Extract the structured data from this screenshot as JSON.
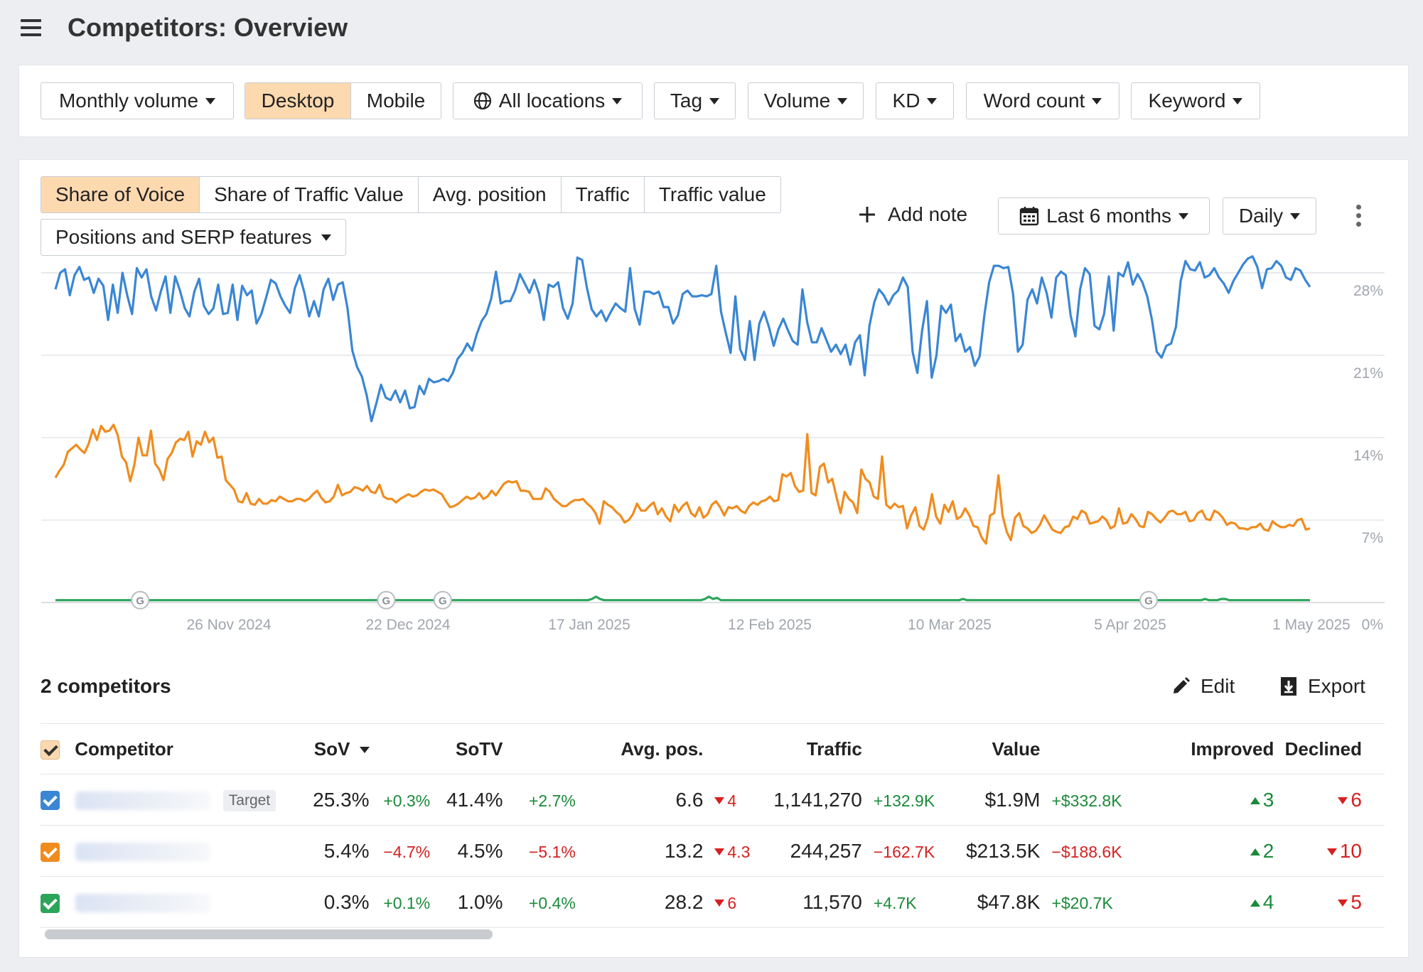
{
  "header": {
    "title": "Competitors: Overview"
  },
  "filters": {
    "monthly_volume": "Monthly volume",
    "desktop": "Desktop",
    "mobile": "Mobile",
    "locations": "All locations",
    "tag": "Tag",
    "volume": "Volume",
    "kd": "KD",
    "word_count": "Word count",
    "keyword": "Keyword"
  },
  "tabs": [
    "Share of Voice",
    "Share of Traffic Value",
    "Avg. position",
    "Traffic",
    "Traffic value"
  ],
  "positions_dropdown": "Positions and SERP features",
  "toolbar": {
    "add_note": "Add note",
    "date_range": "Last 6 months",
    "granularity": "Daily"
  },
  "chart_data": {
    "type": "line",
    "x_ticks": [
      "26 Nov 2024",
      "22 Dec 2024",
      "17 Jan 2025",
      "12 Feb 2025",
      "10 Mar 2025",
      "5 Apr 2025",
      "1 May 2025"
    ],
    "y_ticks": [
      "28%",
      "21%",
      "14%",
      "7%",
      "0%"
    ],
    "ylim": [
      0,
      28
    ],
    "colors": [
      "#3a86d4",
      "#f08c1e",
      "#2ca55a"
    ],
    "annotation_markers": "G",
    "annotation_positions": [
      21,
      82,
      96,
      271
    ],
    "series": [
      {
        "values": [
          26.6,
          28.0,
          28.3,
          26.1,
          27.8,
          28.5,
          27.4,
          27.6,
          26.3,
          27.5,
          26.9,
          24.0,
          27.0,
          24.6,
          28.0,
          26.1,
          24.5,
          28.4,
          27.6,
          28.3,
          26.0,
          24.8,
          26.4,
          27.7,
          24.6,
          27.7,
          26.5,
          25.0,
          24.3,
          26.4,
          27.5,
          25.2,
          24.5,
          25.0,
          27.0,
          24.5,
          24.6,
          27.0,
          24.0,
          26.9,
          26.1,
          26.5,
          23.7,
          24.5,
          25.9,
          27.4,
          27.1,
          26.0,
          25.2,
          24.6,
          26.7,
          27.8,
          26.3,
          24.3,
          25.6,
          24.3,
          26.6,
          27.5,
          25.7,
          27.0,
          27.2,
          25.0,
          21.4,
          20.0,
          19.2,
          17.6,
          15.4,
          16.9,
          18.5,
          17.4,
          17.2,
          18.0,
          17.0,
          18.0,
          16.5,
          16.6,
          18.4,
          17.7,
          19.0,
          18.7,
          18.8,
          19.0,
          18.8,
          19.5,
          20.7,
          21.2,
          22.0,
          21.4,
          22.8,
          23.9,
          24.5,
          25.8,
          28.1,
          25.4,
          25.6,
          25.6,
          26.5,
          27.9,
          27.1,
          26.3,
          27.4,
          26.2,
          24.0,
          27.0,
          26.8,
          27.2,
          25.0,
          24.1,
          25.4,
          29.3,
          29.1,
          26.7,
          24.9,
          24.3,
          24.8,
          23.9,
          24.7,
          25.4,
          25.0,
          24.7,
          28.4,
          24.9,
          23.6,
          26.4,
          26.4,
          26.2,
          26.4,
          25.1,
          25.1,
          23.7,
          24.4,
          26.2,
          26.5,
          26.0,
          26.0,
          26.1,
          26.0,
          26.2,
          28.6,
          24.7,
          22.9,
          21.2,
          26.0,
          21.5,
          20.6,
          23.9,
          20.6,
          23.7,
          24.7,
          23.4,
          21.8,
          23.2,
          24.1,
          23.1,
          22.2,
          21.9,
          26.6,
          23.8,
          22.1,
          22.1,
          23.3,
          22.3,
          21.3,
          21.9,
          21.1,
          21.9,
          20.2,
          22.1,
          22.7,
          19.3,
          23.5,
          25.5,
          26.6,
          26.1,
          25.3,
          26.1,
          26.5,
          27.6,
          26.8,
          21.3,
          19.5,
          23.1,
          25.6,
          19.1,
          21.0,
          25.2,
          24.6,
          25.3,
          22.2,
          22.8,
          21.3,
          21.7,
          20.1,
          20.9,
          24.4,
          27.2,
          28.6,
          28.6,
          28.4,
          28.5,
          26.2,
          21.3,
          21.9,
          25.7,
          26.6,
          25.4,
          27.6,
          26.3,
          24.2,
          27.6,
          28.1,
          27.8,
          24.4,
          22.6,
          26.6,
          28.4,
          27.9,
          23.5,
          23.2,
          24.5,
          27.7,
          23.1,
          28.0,
          27.7,
          28.9,
          27.0,
          27.9,
          27.2,
          26.0,
          24.0,
          21.3,
          20.8,
          21.8,
          22.0,
          23.4,
          27.3,
          29.0,
          28.3,
          28.2,
          28.9,
          27.6,
          27.8,
          28.4,
          27.6,
          27.1,
          26.3,
          27.3,
          28.0,
          28.7,
          29.2,
          29.4,
          28.5,
          26.7,
          28.3,
          28.4,
          29.0,
          28.6,
          27.6,
          27.4,
          28.4,
          28.2,
          27.4,
          26.8
        ],
        "_note": "read from plot"
      },
      {
        "values": [
          10.6,
          11.2,
          11.7,
          12.8,
          13.1,
          13.4,
          13.0,
          12.7,
          13.5,
          14.7,
          13.8,
          15.0,
          14.5,
          14.6,
          15.1,
          14.2,
          12.4,
          11.9,
          10.3,
          11.7,
          14.0,
          12.5,
          12.5,
          14.6,
          11.8,
          11.3,
          10.4,
          12.2,
          12.7,
          13.6,
          13.9,
          13.8,
          14.5,
          12.4,
          13.7,
          13.4,
          14.5,
          13.6,
          14.0,
          12.3,
          12.4,
          10.4,
          10.0,
          9.6,
          8.6,
          8.5,
          9.3,
          8.4,
          8.3,
          8.8,
          8.4,
          8.4,
          8.7,
          8.6,
          9.0,
          8.8,
          8.6,
          8.6,
          8.8,
          8.8,
          8.6,
          8.8,
          9.2,
          9.5,
          8.9,
          8.5,
          8.6,
          9.0,
          10.0,
          9.1,
          9.3,
          9.4,
          9.8,
          9.7,
          9.5,
          9.9,
          9.4,
          9.3,
          10.0,
          9.0,
          8.8,
          8.8,
          8.5,
          8.8,
          9.0,
          9.2,
          9.0,
          9.1,
          9.4,
          9.6,
          9.5,
          9.6,
          9.4,
          9.2,
          8.6,
          8.1,
          8.2,
          8.4,
          8.7,
          9.0,
          8.8,
          8.9,
          9.3,
          8.8,
          9.0,
          9.5,
          9.1,
          9.6,
          10.1,
          10.3,
          10.2,
          10.3,
          9.5,
          9.5,
          9.4,
          8.8,
          8.8,
          8.8,
          9.7,
          9.4,
          8.8,
          8.5,
          8.2,
          8.2,
          8.5,
          8.7,
          8.7,
          8.8,
          8.4,
          8.1,
          7.6,
          6.7,
          8.6,
          8.3,
          8.1,
          7.7,
          7.4,
          6.8,
          7.0,
          7.5,
          8.4,
          7.8,
          7.8,
          8.2,
          8.5,
          7.5,
          8.0,
          7.3,
          6.9,
          8.3,
          7.7,
          8.2,
          8.5,
          7.6,
          7.3,
          8.1,
          7.2,
          7.5,
          8.3,
          8.6,
          8.1,
          7.4,
          8.1,
          8.0,
          8.2,
          7.8,
          7.6,
          8.2,
          8.5,
          8.3,
          8.6,
          8.7,
          9.0,
          8.6,
          8.7,
          10.9,
          10.7,
          11.0,
          9.9,
          9.4,
          9.5,
          14.3,
          9.3,
          9.1,
          11.5,
          11.8,
          10.2,
          10.5,
          9.0,
          7.6,
          9.4,
          8.8,
          8.5,
          7.6,
          11.3,
          10.5,
          10.2,
          9.0,
          8.8,
          12.4,
          8.3,
          8.0,
          8.4,
          8.1,
          8.2,
          6.3,
          7.4,
          8.1,
          6.5,
          6.2,
          7.2,
          9.2,
          7.3,
          6.7,
          8.3,
          7.7,
          8.6,
          7.1,
          7.3,
          8.0,
          7.4,
          6.5,
          6.4,
          5.5,
          5.0,
          7.4,
          7.6,
          10.8,
          7.4,
          6.0,
          5.3,
          7.2,
          7.6,
          6.5,
          6.3,
          5.9,
          6.1,
          6.6,
          7.4,
          6.8,
          6.2,
          6.0,
          5.9,
          6.4,
          6.5,
          7.3,
          7.1,
          7.8,
          7.6,
          6.7,
          6.8,
          6.9,
          7.3,
          7.0,
          6.3,
          6.5,
          8.0,
          6.7,
          6.8,
          7.5,
          7.1,
          6.5,
          6.4,
          7.7,
          7.5,
          7.1,
          6.8,
          7.2,
          7.7,
          7.8,
          7.5,
          7.5,
          7.7,
          6.9,
          7.0,
          7.6,
          7.8,
          7.1,
          7.0,
          7.8,
          7.6,
          7.2,
          6.6,
          6.8,
          6.7,
          6.3,
          6.3,
          6.2,
          6.4,
          6.4,
          6.7,
          6.2,
          6.1,
          6.9,
          6.6,
          6.4,
          6.4,
          6.6,
          6.5,
          7.0,
          7.1,
          6.2,
          6.3
        ],
        "_note": "read from plot"
      },
      {
        "values": [
          0.2,
          0.2,
          0.2,
          0.2,
          0.2,
          0.2,
          0.2,
          0.2,
          0.2,
          0.2,
          0.2,
          0.2,
          0.2,
          0.2,
          0.2,
          0.2,
          0.2,
          0.2,
          0.2,
          0.2,
          0.2,
          0.2,
          0.2,
          0.2,
          0.2,
          0.2,
          0.2,
          0.2,
          0.2,
          0.2,
          0.2,
          0.2,
          0.2,
          0.2,
          0.2,
          0.2,
          0.2,
          0.2,
          0.2,
          0.2,
          0.2,
          0.2,
          0.2,
          0.2,
          0.2,
          0.2,
          0.2,
          0.2,
          0.2,
          0.2,
          0.2,
          0.2,
          0.2,
          0.2,
          0.2,
          0.2,
          0.2,
          0.2,
          0.2,
          0.2,
          0.2,
          0.2,
          0.2,
          0.2,
          0.2,
          0.2,
          0.2,
          0.2,
          0.2,
          0.2,
          0.2,
          0.2,
          0.2,
          0.2,
          0.2,
          0.2,
          0.2,
          0.2,
          0.2,
          0.2,
          0.2,
          0.2,
          0.2,
          0.2,
          0.2,
          0.2,
          0.2,
          0.2,
          0.2,
          0.2,
          0.2,
          0.2,
          0.2,
          0.2,
          0.2,
          0.2,
          0.2,
          0.2,
          0.2,
          0.2,
          0.2,
          0.2,
          0.2,
          0.2,
          0.2,
          0.2,
          0.2,
          0.2,
          0.2,
          0.2,
          0.2,
          0.2,
          0.2,
          0.2,
          0.2,
          0.2,
          0.2,
          0.2,
          0.2,
          0.2,
          0.2,
          0.2,
          0.2,
          0.2,
          0.2,
          0.2,
          0.2,
          0.2,
          0.2,
          0.2,
          0.2,
          0.2,
          0.2,
          0.3,
          0.5,
          0.3,
          0.2,
          0.2,
          0.2,
          0.2,
          0.2,
          0.2,
          0.2,
          0.2,
          0.2,
          0.2,
          0.2,
          0.2,
          0.2,
          0.2,
          0.2,
          0.2,
          0.2,
          0.2,
          0.2,
          0.2,
          0.2,
          0.2,
          0.2,
          0.2,
          0.2,
          0.3,
          0.5,
          0.3,
          0.4,
          0.2,
          0.2,
          0.2,
          0.2,
          0.2,
          0.2,
          0.2,
          0.2,
          0.2,
          0.2,
          0.2,
          0.2,
          0.2,
          0.2,
          0.2,
          0.2,
          0.2,
          0.2,
          0.2,
          0.2,
          0.2,
          0.2,
          0.2,
          0.2,
          0.2,
          0.2,
          0.2,
          0.2,
          0.2,
          0.2,
          0.2,
          0.2,
          0.2,
          0.2,
          0.2,
          0.2,
          0.2,
          0.2,
          0.2,
          0.2,
          0.2,
          0.2,
          0.2,
          0.2,
          0.2,
          0.2,
          0.2,
          0.2,
          0.2,
          0.2,
          0.2,
          0.2,
          0.2,
          0.2,
          0.2,
          0.2,
          0.2,
          0.2,
          0.2,
          0.2,
          0.3,
          0.2,
          0.2,
          0.2,
          0.2,
          0.2,
          0.2,
          0.2,
          0.2,
          0.2,
          0.2,
          0.2,
          0.2,
          0.2,
          0.2,
          0.2,
          0.2,
          0.2,
          0.2,
          0.2,
          0.2,
          0.2,
          0.2,
          0.2,
          0.2,
          0.2,
          0.2,
          0.2,
          0.2,
          0.2,
          0.2,
          0.2,
          0.2,
          0.2,
          0.2,
          0.2,
          0.2,
          0.2,
          0.2,
          0.2,
          0.2,
          0.2,
          0.2,
          0.2,
          0.2,
          0.2,
          0.2,
          0.2,
          0.2,
          0.2,
          0.2,
          0.2,
          0.2,
          0.2,
          0.2,
          0.2,
          0.2,
          0.2,
          0.2,
          0.2,
          0.3,
          0.2,
          0.2,
          0.2,
          0.3,
          0.3,
          0.2,
          0.2,
          0.2,
          0.2,
          0.2,
          0.2,
          0.2,
          0.2,
          0.2,
          0.2,
          0.2,
          0.2,
          0.2,
          0.2,
          0.2,
          0.2,
          0.2,
          0.2,
          0.2,
          0.2,
          0.2
        ],
        "_note": "read from plot"
      }
    ]
  },
  "competitors": {
    "count_label": "2 competitors",
    "edit": "Edit",
    "export": "Export",
    "columns": {
      "competitor": "Competitor",
      "sov": "SoV",
      "sotv": "SoTV",
      "avg_pos": "Avg. pos.",
      "traffic": "Traffic",
      "value": "Value",
      "improved": "Improved",
      "declined": "Declined"
    },
    "rows": [
      {
        "color": "#3a86d4",
        "badge": "Target",
        "sov": "25.3%",
        "sov_delta": "+0.3%",
        "sotv": "41.4%",
        "sotv_delta": "+2.7%",
        "avg_pos": "6.6",
        "avg_pos_delta": "4",
        "traffic": "1,141,270",
        "traffic_delta": "+132.9K",
        "value": "$1.9M",
        "value_delta": "+$332.8K",
        "improved": "3",
        "declined": "6"
      },
      {
        "color": "#f08c1e",
        "badge": "",
        "sov": "5.4%",
        "sov_delta": "−4.7%",
        "sotv": "4.5%",
        "sotv_delta": "−5.1%",
        "avg_pos": "13.2",
        "avg_pos_delta": "4.3",
        "traffic": "244,257",
        "traffic_delta": "−162.7K",
        "value": "$213.5K",
        "value_delta": "−$188.6K",
        "improved": "2",
        "declined": "10"
      },
      {
        "color": "#2ca55a",
        "badge": "",
        "sov": "0.3%",
        "sov_delta": "+0.1%",
        "sotv": "1.0%",
        "sotv_delta": "+0.4%",
        "avg_pos": "28.2",
        "avg_pos_delta": "6",
        "traffic": "11,570",
        "traffic_delta": "+4.7K",
        "value": "$47.8K",
        "value_delta": "+$20.7K",
        "improved": "4",
        "declined": "5"
      }
    ]
  }
}
